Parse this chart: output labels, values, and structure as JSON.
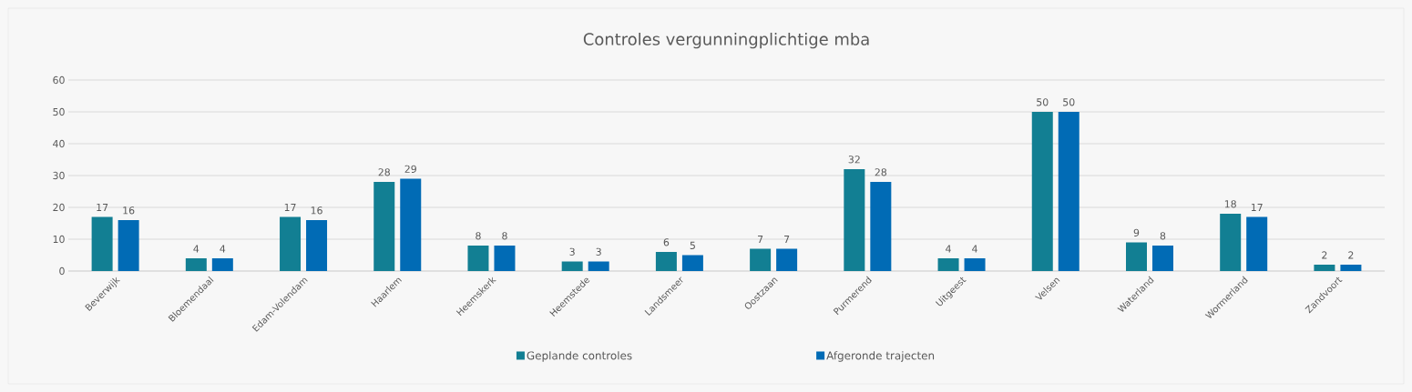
{
  "chart_data": {
    "type": "bar",
    "title": "Controles vergunningplichtige mba",
    "categories": [
      "Beverwijk",
      "Bloemendaal",
      "Edam-Volendam",
      "Haarlem",
      "Heemskerk",
      "Heemstede",
      "Landsmeer",
      "Oostzaan",
      "Purmerend",
      "Uitgeest",
      "Velsen",
      "Waterland",
      "Wormerland",
      "Zandvoort"
    ],
    "series": [
      {
        "name": "Geplande controles",
        "color": "#127f93",
        "values": [
          17,
          4,
          17,
          28,
          8,
          3,
          6,
          7,
          32,
          4,
          50,
          9,
          18,
          2
        ]
      },
      {
        "name": "Afgeronde trajecten",
        "color": "#016bb5",
        "values": [
          16,
          4,
          16,
          29,
          8,
          3,
          5,
          7,
          28,
          4,
          50,
          8,
          17,
          2
        ]
      }
    ],
    "ylim": [
      0,
      60
    ],
    "yticks": [
      0,
      10,
      20,
      30,
      40,
      50,
      60
    ],
    "grid": "y",
    "legend": "bottom",
    "data_labels": true
  }
}
